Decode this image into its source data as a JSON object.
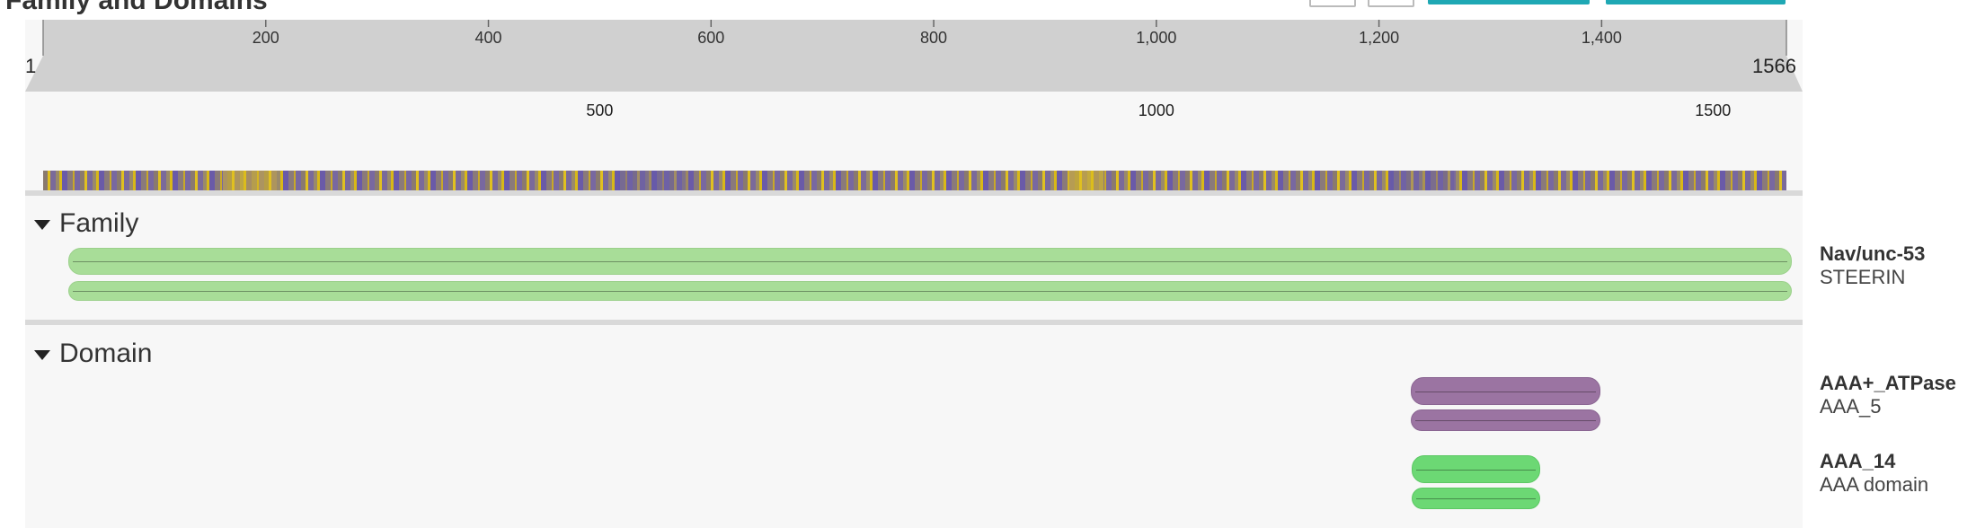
{
  "header": {
    "title": "Family and Domains"
  },
  "ruler": {
    "ticks": [
      "200",
      "400",
      "600",
      "800",
      "1,000",
      "1,200",
      "1,400"
    ],
    "range_start": "1",
    "range_end": "1566"
  },
  "scale": {
    "ticks": [
      "500",
      "1000",
      "1500"
    ]
  },
  "sections": {
    "family": {
      "title": "Family",
      "entries": [
        {
          "accession": "Nav/unc-53",
          "name": "STEERIN"
        }
      ]
    },
    "domain": {
      "title": "Domain",
      "entries": [
        {
          "accession": "AAA+_ATPase",
          "name": "AAA_5"
        },
        {
          "accession": "AAA_14",
          "name": "AAA domain"
        }
      ]
    }
  },
  "colors": {
    "family": "#a8dd98",
    "domain_aaa_atpase": "#9b74a2",
    "domain_aaa_14": "#6cd874",
    "button_accent": "#1fa8b4"
  }
}
